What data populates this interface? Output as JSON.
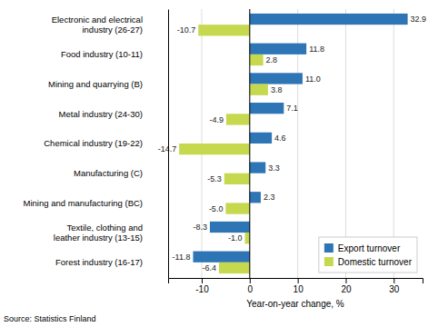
{
  "chart_data": {
    "type": "bar",
    "orientation": "horizontal",
    "categories": [
      "Electronic and electrical\nindustry (26-27)",
      "Food industry (10-11)",
      "Mining and quarrying (B)",
      "Metal industry (24-30)",
      "Chemical industry (19-22)",
      "Manufacturing (C)",
      "Mining and manufacturing (BC)",
      "Textile, clothing and\nleather industry (13-15)",
      "Forest industry (16-17)"
    ],
    "series": [
      {
        "name": "Export turnover",
        "color": "#2E75B6",
        "values": [
          32.9,
          11.8,
          11.0,
          7.1,
          4.6,
          3.3,
          2.3,
          -8.3,
          -11.8
        ],
        "value_labels": [
          "32.9",
          "11.8",
          "11.0",
          "7.1",
          "4.6",
          "3.3",
          "2.3",
          "-8.3",
          "-11.8"
        ]
      },
      {
        "name": "Domestic turnover",
        "color": "#C5D84E",
        "values": [
          -10.7,
          2.8,
          3.8,
          -4.9,
          -14.7,
          -5.3,
          -5.0,
          -1.0,
          -6.4
        ],
        "value_labels": [
          "-10.7",
          "2.8",
          "3.8",
          "-4.9",
          "-14.7",
          "-5.3",
          "-5.0",
          "-1.0",
          "-6.4"
        ]
      }
    ],
    "xlabel": "Year-on-year change, %",
    "annotations": [
      "Source: Statistics Finland"
    ],
    "xlim": [
      -17,
      36
    ],
    "xticks": [
      -10,
      0,
      10,
      20,
      30
    ],
    "grid": true,
    "legend": "lower right",
    "data_labels": true
  }
}
